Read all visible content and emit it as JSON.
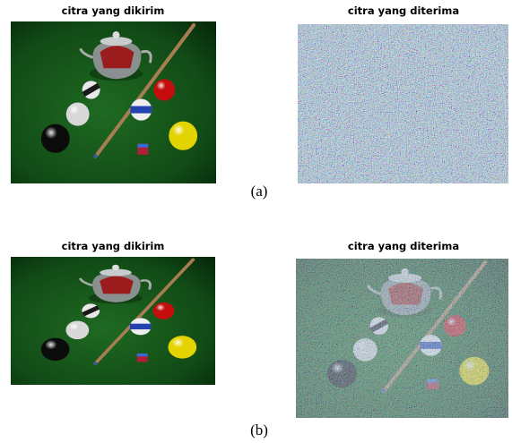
{
  "figures": [
    {
      "panels": [
        {
          "title": "citra yang dikirim"
        },
        {
          "title": "citra yang diterima"
        }
      ],
      "caption": "(a)"
    },
    {
      "panels": [
        {
          "title": "citra yang dikirim"
        },
        {
          "title": "citra yang diterima"
        }
      ],
      "caption": "(b)"
    }
  ]
}
